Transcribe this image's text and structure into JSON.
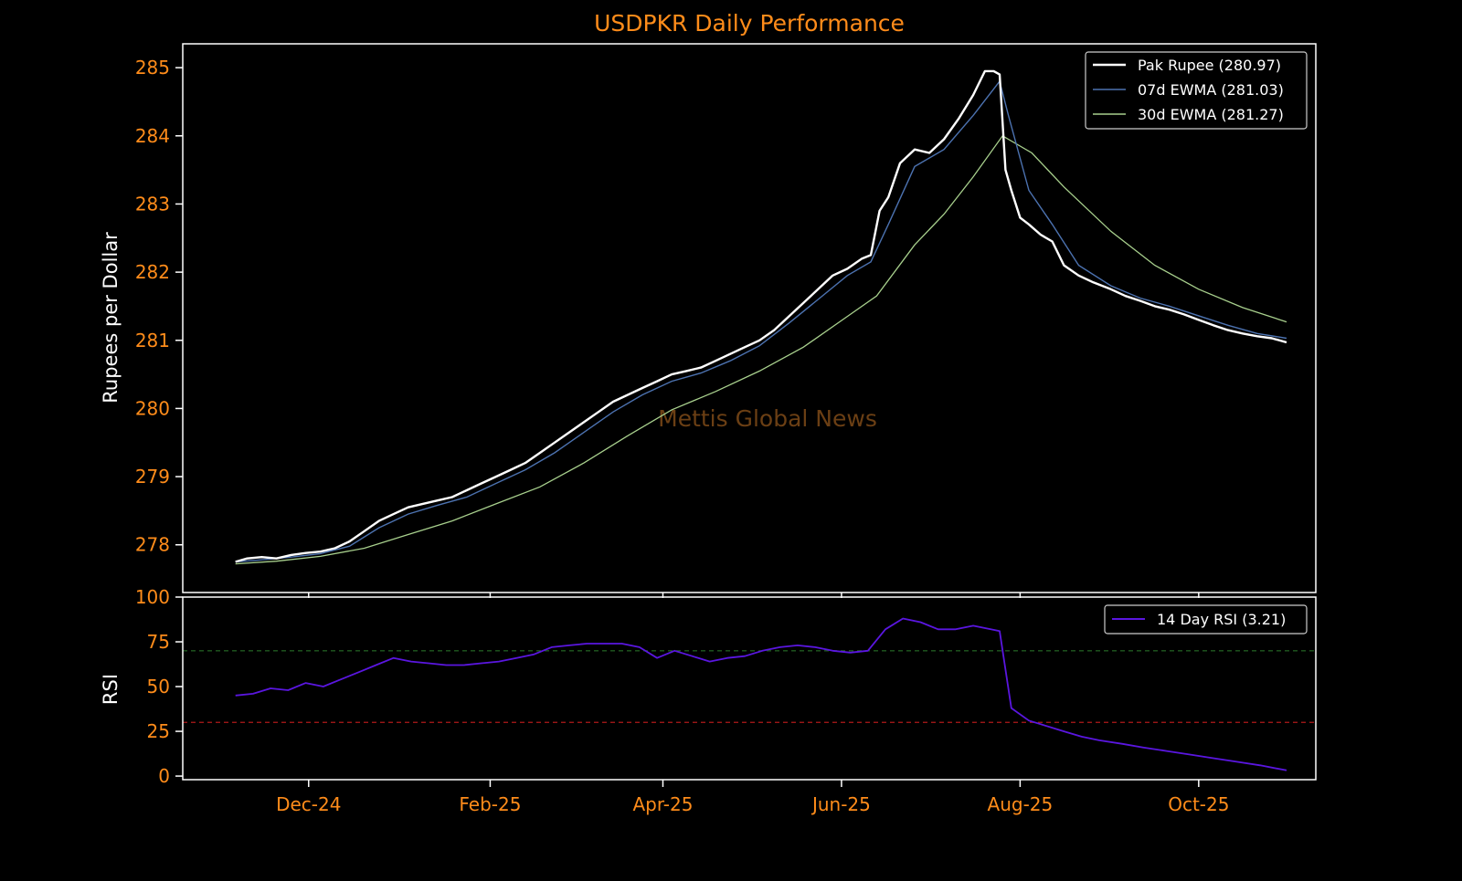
{
  "title": "USDPKR Daily Performance",
  "watermark": "Mettis Global News",
  "colors": {
    "background": "#000000",
    "frame": "#ffffff",
    "ticks": "#ff8c1a",
    "title": "#ff8c1a",
    "price": "#ffffff",
    "ewma7": "#4c72b0",
    "ewma30": "#a8d08d",
    "rsi": "#5a16e0",
    "overbought": "#1f5a1f",
    "oversold": "#b01a1a",
    "watermark": "#6b3f14"
  },
  "chart_data": [
    {
      "type": "line",
      "panel": "price",
      "ylabel": "Rupees per Dollar",
      "ylim": [
        277.3,
        285.35
      ],
      "yticks": [
        278,
        279,
        280,
        281,
        282,
        283,
        284,
        285
      ],
      "xlim": [
        "2024-10-19",
        "2025-11-10"
      ],
      "xticks": [
        {
          "date": "2024-12-01",
          "label": "Dec-24"
        },
        {
          "date": "2025-02-01",
          "label": "Feb-25"
        },
        {
          "date": "2025-04-01",
          "label": "Apr-25"
        },
        {
          "date": "2025-06-01",
          "label": "Jun-25"
        },
        {
          "date": "2025-08-01",
          "label": "Aug-25"
        },
        {
          "date": "2025-10-01",
          "label": "Oct-25"
        }
      ],
      "legend_position": "top-right",
      "series": [
        {
          "name": "Pak Rupee (280.97)",
          "points": [
            [
              "2024-11-06",
              277.75
            ],
            [
              "2024-11-10",
              277.8
            ],
            [
              "2024-11-15",
              277.82
            ],
            [
              "2024-11-20",
              277.8
            ],
            [
              "2024-11-25",
              277.85
            ],
            [
              "2024-11-30",
              277.88
            ],
            [
              "2024-12-05",
              277.9
            ],
            [
              "2024-12-10",
              277.95
            ],
            [
              "2024-12-15",
              278.05
            ],
            [
              "2024-12-20",
              278.2
            ],
            [
              "2024-12-25",
              278.35
            ],
            [
              "2024-12-30",
              278.45
            ],
            [
              "2025-01-04",
              278.55
            ],
            [
              "2025-01-09",
              278.6
            ],
            [
              "2025-01-14",
              278.65
            ],
            [
              "2025-01-19",
              278.7
            ],
            [
              "2025-01-24",
              278.8
            ],
            [
              "2025-01-29",
              278.9
            ],
            [
              "2025-02-03",
              279.0
            ],
            [
              "2025-02-08",
              279.1
            ],
            [
              "2025-02-13",
              279.2
            ],
            [
              "2025-02-18",
              279.35
            ],
            [
              "2025-02-23",
              279.5
            ],
            [
              "2025-02-28",
              279.65
            ],
            [
              "2025-03-05",
              279.8
            ],
            [
              "2025-03-10",
              279.95
            ],
            [
              "2025-03-15",
              280.1
            ],
            [
              "2025-03-20",
              280.2
            ],
            [
              "2025-03-25",
              280.3
            ],
            [
              "2025-03-30",
              280.4
            ],
            [
              "2025-04-04",
              280.5
            ],
            [
              "2025-04-09",
              280.55
            ],
            [
              "2025-04-14",
              280.6
            ],
            [
              "2025-04-19",
              280.7
            ],
            [
              "2025-04-24",
              280.8
            ],
            [
              "2025-04-29",
              280.9
            ],
            [
              "2025-05-04",
              281.0
            ],
            [
              "2025-05-09",
              281.15
            ],
            [
              "2025-05-14",
              281.35
            ],
            [
              "2025-05-19",
              281.55
            ],
            [
              "2025-05-24",
              281.75
            ],
            [
              "2025-05-29",
              281.95
            ],
            [
              "2025-06-03",
              282.05
            ],
            [
              "2025-06-08",
              282.2
            ],
            [
              "2025-06-11",
              282.25
            ],
            [
              "2025-06-14",
              282.9
            ],
            [
              "2025-06-17",
              283.1
            ],
            [
              "2025-06-21",
              283.6
            ],
            [
              "2025-06-26",
              283.8
            ],
            [
              "2025-07-01",
              283.75
            ],
            [
              "2025-07-06",
              283.95
            ],
            [
              "2025-07-11",
              284.25
            ],
            [
              "2025-07-16",
              284.6
            ],
            [
              "2025-07-20",
              284.95
            ],
            [
              "2025-07-23",
              284.95
            ],
            [
              "2025-07-25",
              284.9
            ],
            [
              "2025-07-27",
              283.5
            ],
            [
              "2025-07-29",
              283.2
            ],
            [
              "2025-08-01",
              282.8
            ],
            [
              "2025-08-04",
              282.7
            ],
            [
              "2025-08-08",
              282.55
            ],
            [
              "2025-08-12",
              282.45
            ],
            [
              "2025-08-16",
              282.1
            ],
            [
              "2025-08-21",
              281.95
            ],
            [
              "2025-08-26",
              281.85
            ],
            [
              "2025-09-01",
              281.75
            ],
            [
              "2025-09-06",
              281.65
            ],
            [
              "2025-09-11",
              281.58
            ],
            [
              "2025-09-16",
              281.5
            ],
            [
              "2025-09-21",
              281.45
            ],
            [
              "2025-09-26",
              281.38
            ],
            [
              "2025-10-01",
              281.3
            ],
            [
              "2025-10-06",
              281.22
            ],
            [
              "2025-10-11",
              281.15
            ],
            [
              "2025-10-16",
              281.1
            ],
            [
              "2025-10-21",
              281.06
            ],
            [
              "2025-10-26",
              281.03
            ],
            [
              "2025-10-31",
              280.97
            ]
          ]
        },
        {
          "name": "07d EWMA (281.03)",
          "points": [
            [
              "2024-11-06",
              277.75
            ],
            [
              "2024-11-15",
              277.78
            ],
            [
              "2024-11-25",
              277.82
            ],
            [
              "2024-12-05",
              277.87
            ],
            [
              "2024-12-15",
              277.98
            ],
            [
              "2024-12-25",
              278.25
            ],
            [
              "2025-01-04",
              278.45
            ],
            [
              "2025-01-14",
              278.58
            ],
            [
              "2025-01-24",
              278.7
            ],
            [
              "2025-02-03",
              278.9
            ],
            [
              "2025-02-13",
              279.1
            ],
            [
              "2025-02-23",
              279.35
            ],
            [
              "2025-03-05",
              279.65
            ],
            [
              "2025-03-15",
              279.95
            ],
            [
              "2025-03-25",
              280.2
            ],
            [
              "2025-04-04",
              280.4
            ],
            [
              "2025-04-14",
              280.52
            ],
            [
              "2025-04-24",
              280.7
            ],
            [
              "2025-05-04",
              280.92
            ],
            [
              "2025-05-14",
              281.25
            ],
            [
              "2025-05-24",
              281.6
            ],
            [
              "2025-06-03",
              281.95
            ],
            [
              "2025-06-11",
              282.15
            ],
            [
              "2025-06-17",
              282.7
            ],
            [
              "2025-06-26",
              283.55
            ],
            [
              "2025-07-06",
              283.8
            ],
            [
              "2025-07-16",
              284.3
            ],
            [
              "2025-07-25",
              284.8
            ],
            [
              "2025-07-28",
              284.3
            ],
            [
              "2025-08-04",
              283.2
            ],
            [
              "2025-08-12",
              282.7
            ],
            [
              "2025-08-21",
              282.1
            ],
            [
              "2025-09-01",
              281.8
            ],
            [
              "2025-09-11",
              281.62
            ],
            [
              "2025-09-21",
              281.5
            ],
            [
              "2025-10-01",
              281.36
            ],
            [
              "2025-10-11",
              281.22
            ],
            [
              "2025-10-21",
              281.1
            ],
            [
              "2025-10-31",
              281.03
            ]
          ]
        },
        {
          "name": "30d EWMA (281.27)",
          "points": [
            [
              "2024-11-06",
              277.72
            ],
            [
              "2024-11-20",
              277.76
            ],
            [
              "2024-12-05",
              277.83
            ],
            [
              "2024-12-20",
              277.95
            ],
            [
              "2025-01-04",
              278.15
            ],
            [
              "2025-01-19",
              278.35
            ],
            [
              "2025-02-03",
              278.6
            ],
            [
              "2025-02-18",
              278.85
            ],
            [
              "2025-03-05",
              279.2
            ],
            [
              "2025-03-20",
              279.6
            ],
            [
              "2025-04-04",
              279.98
            ],
            [
              "2025-04-19",
              280.25
            ],
            [
              "2025-05-04",
              280.55
            ],
            [
              "2025-05-19",
              280.9
            ],
            [
              "2025-06-03",
              281.35
            ],
            [
              "2025-06-13",
              281.65
            ],
            [
              "2025-06-26",
              282.4
            ],
            [
              "2025-07-06",
              282.85
            ],
            [
              "2025-07-16",
              283.4
            ],
            [
              "2025-07-26",
              284.0
            ],
            [
              "2025-08-05",
              283.75
            ],
            [
              "2025-08-16",
              283.25
            ],
            [
              "2025-09-01",
              282.6
            ],
            [
              "2025-09-16",
              282.1
            ],
            [
              "2025-10-01",
              281.75
            ],
            [
              "2025-10-16",
              281.48
            ],
            [
              "2025-10-31",
              281.27
            ]
          ]
        }
      ]
    },
    {
      "type": "line",
      "panel": "rsi",
      "ylabel": "RSI",
      "ylim": [
        -2,
        100
      ],
      "yticks": [
        0,
        25,
        50,
        75,
        100
      ],
      "reference_lines": [
        70,
        30
      ],
      "legend_position": "top-right",
      "series": [
        {
          "name": "14 Day RSI (3.21)",
          "points": [
            [
              "2024-11-06",
              45
            ],
            [
              "2024-11-12",
              46
            ],
            [
              "2024-11-18",
              49
            ],
            [
              "2024-11-24",
              48
            ],
            [
              "2024-11-30",
              52
            ],
            [
              "2024-12-06",
              50
            ],
            [
              "2024-12-12",
              54
            ],
            [
              "2024-12-18",
              58
            ],
            [
              "2024-12-24",
              62
            ],
            [
              "2024-12-30",
              66
            ],
            [
              "2025-01-05",
              64
            ],
            [
              "2025-01-11",
              63
            ],
            [
              "2025-01-17",
              62
            ],
            [
              "2025-01-23",
              62
            ],
            [
              "2025-01-29",
              63
            ],
            [
              "2025-02-04",
              64
            ],
            [
              "2025-02-10",
              66
            ],
            [
              "2025-02-16",
              68
            ],
            [
              "2025-02-22",
              72
            ],
            [
              "2025-02-28",
              73
            ],
            [
              "2025-03-06",
              74
            ],
            [
              "2025-03-12",
              74
            ],
            [
              "2025-03-18",
              74
            ],
            [
              "2025-03-24",
              72
            ],
            [
              "2025-03-30",
              66
            ],
            [
              "2025-04-05",
              70
            ],
            [
              "2025-04-11",
              67
            ],
            [
              "2025-04-17",
              64
            ],
            [
              "2025-04-23",
              66
            ],
            [
              "2025-04-29",
              67
            ],
            [
              "2025-05-05",
              70
            ],
            [
              "2025-05-11",
              72
            ],
            [
              "2025-05-17",
              73
            ],
            [
              "2025-05-23",
              72
            ],
            [
              "2025-05-29",
              70
            ],
            [
              "2025-06-04",
              69
            ],
            [
              "2025-06-10",
              70
            ],
            [
              "2025-06-16",
              82
            ],
            [
              "2025-06-22",
              88
            ],
            [
              "2025-06-28",
              86
            ],
            [
              "2025-07-04",
              82
            ],
            [
              "2025-07-10",
              82
            ],
            [
              "2025-07-16",
              84
            ],
            [
              "2025-07-22",
              82
            ],
            [
              "2025-07-25",
              81
            ],
            [
              "2025-07-29",
              38
            ],
            [
              "2025-08-04",
              31
            ],
            [
              "2025-08-10",
              28
            ],
            [
              "2025-08-16",
              25
            ],
            [
              "2025-08-22",
              22
            ],
            [
              "2025-08-28",
              20
            ],
            [
              "2025-09-05",
              18
            ],
            [
              "2025-09-12",
              16
            ],
            [
              "2025-09-20",
              14
            ],
            [
              "2025-09-28",
              12
            ],
            [
              "2025-10-06",
              10
            ],
            [
              "2025-10-14",
              8
            ],
            [
              "2025-10-22",
              6
            ],
            [
              "2025-10-31",
              3.21
            ]
          ]
        }
      ]
    }
  ]
}
